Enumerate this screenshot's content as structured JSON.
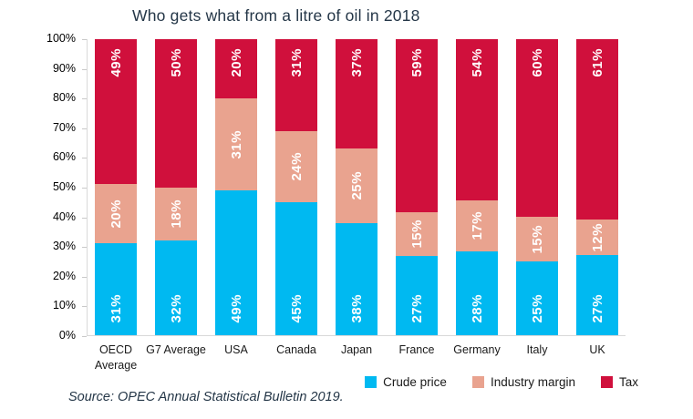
{
  "title": "Who gets what from a litre of oil in 2018",
  "source_note": "Source: OPEC Annual Statistical Bulletin 2019.",
  "colors": {
    "crude_price": "#00B9F1",
    "industry_margin": "#E9A38F",
    "tax": "#D0103C",
    "title_text": "#243647",
    "axis_text": "#000000",
    "axis_line": "#d9d9d9"
  },
  "chart_data": {
    "type": "bar",
    "stacked": true,
    "title": "Who gets what from a litre of oil in 2018",
    "xlabel": "",
    "ylabel": "",
    "ylim": [
      0,
      100
    ],
    "ytick_step": 10,
    "ytick_suffix": "%",
    "grid": false,
    "legend_position": "bottom-right",
    "data_label_format": "{value}%",
    "categories": [
      "OECD Average",
      "G7 Average",
      "USA",
      "Canada",
      "Japan",
      "France",
      "Germany",
      "Italy",
      "UK"
    ],
    "series": [
      {
        "name": "Crude price",
        "color": "#00B9F1",
        "values": [
          31,
          32,
          49,
          45,
          38,
          27,
          28,
          25,
          27
        ]
      },
      {
        "name": "Industry margin",
        "color": "#E9A38F",
        "values": [
          20,
          18,
          31,
          24,
          25,
          15,
          17,
          15,
          12
        ]
      },
      {
        "name": "Tax",
        "color": "#D0103C",
        "values": [
          49,
          50,
          20,
          31,
          37,
          59,
          54,
          60,
          61
        ]
      }
    ],
    "source": "Source: OPEC Annual Statistical Bulletin 2019."
  }
}
